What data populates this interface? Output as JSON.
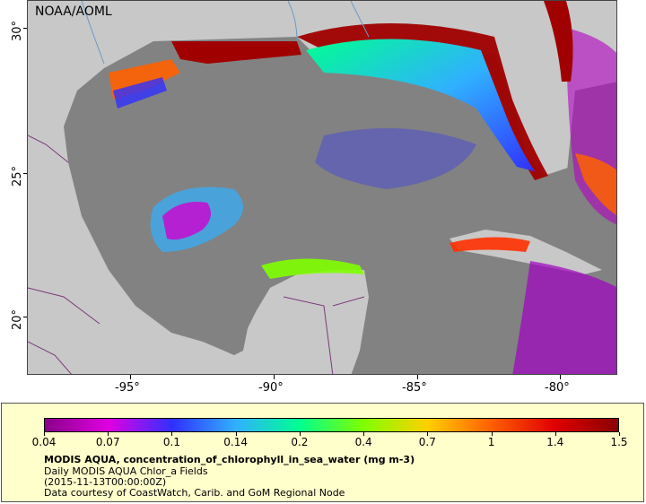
{
  "map": {
    "credit": "NOAA/AOML",
    "latitude_labels": [
      "30°",
      "25°",
      "20°"
    ],
    "longitude_labels": [
      "-95°",
      "-90°",
      "-85°",
      "-80°"
    ],
    "colors": {
      "land": "#c8c8c8",
      "no_data": "#828282",
      "borders": "#7a3b7a",
      "rivers": "#6a9ac8"
    }
  },
  "legend": {
    "tick_labels": [
      "0.04",
      "0.07",
      "0.1",
      "0.14",
      "0.2",
      "0.4",
      "0.7",
      "1",
      "1.4",
      "1.5"
    ],
    "title": "MODIS AQUA, concentration_of_chlorophyll_in_sea_water (mg m-3)",
    "line1": "Daily MODIS AQUA Chlor_a Fields",
    "line2": "(2015-11-13T00:00:00Z)",
    "line3": "Data courtesy of CoastWatch, Carib. and GoM Regional Node",
    "colorbar_stops": [
      "#8a008a",
      "#e000e0",
      "#3030ff",
      "#30b0ff",
      "#00ff90",
      "#80ff00",
      "#ffd000",
      "#ff6000",
      "#e00000",
      "#8a0000"
    ]
  }
}
